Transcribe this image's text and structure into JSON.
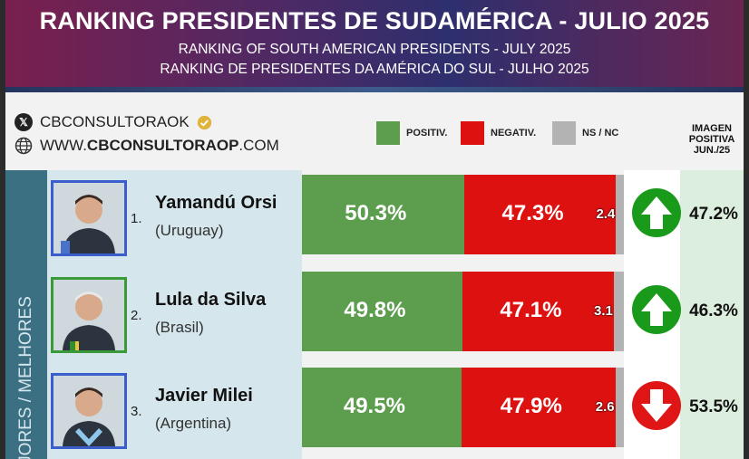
{
  "header": {
    "title": "RANKING PRESIDENTES DE SUDAMÉRICA - JULIO 2025",
    "subtitle_en": "RANKING OF SOUTH AMERICAN PRESIDENTS -   JULY 2025",
    "subtitle_pt": "RANKING DE PRESIDENTES DA AMÉRICA DO SUL - JULHO 2025"
  },
  "branding": {
    "handle": "CBCONSULTORAOK",
    "website_prefix": "WWW.",
    "website_bold": "CBCONSULTORAOP",
    "website_suffix": ".COM"
  },
  "legend": {
    "positive_label": "POSITIV.",
    "negative_label": "NEGATIV.",
    "ns_label": "NS / NC",
    "positive_color": "#5c9e4d",
    "negative_color": "#de1111",
    "ns_color": "#b3b3b3"
  },
  "image_column_header": {
    "line1": "IMAGEN",
    "line2": "POSITIVA",
    "line3": "JUN./25"
  },
  "side_label": "JORES / MELHORES",
  "rows": [
    {
      "rank": "1.",
      "name": "Yamandú Orsi",
      "country": "(Uruguay)",
      "positive": 50.3,
      "negative": 47.3,
      "ns": 2.4,
      "positive_label": "50.3%",
      "negative_label": "47.3%",
      "ns_label": "2.4",
      "trend": "up",
      "trend_icon": "arrow-up-icon",
      "previous_image": "47.2%",
      "photo_border": "#3a5fcd"
    },
    {
      "rank": "2.",
      "name": "Lula da Silva",
      "country": "(Brasil)",
      "positive": 49.8,
      "negative": 47.1,
      "ns": 3.1,
      "positive_label": "49.8%",
      "negative_label": "47.1%",
      "ns_label": "3.1",
      "trend": "up",
      "trend_icon": "arrow-up-icon",
      "previous_image": "46.3%",
      "photo_border": "#3a9a3a"
    },
    {
      "rank": "3.",
      "name": "Javier Milei",
      "country": "(Argentina)",
      "positive": 49.5,
      "negative": 47.9,
      "ns": 2.6,
      "positive_label": "49.5%",
      "negative_label": "47.9%",
      "ns_label": "2.6",
      "trend": "down",
      "trend_icon": "arrow-down-icon",
      "previous_image": "53.5%",
      "photo_border": "#3a5fcd"
    }
  ],
  "trend_colors": {
    "up": "#1a9a1a",
    "down": "#e01515"
  }
}
